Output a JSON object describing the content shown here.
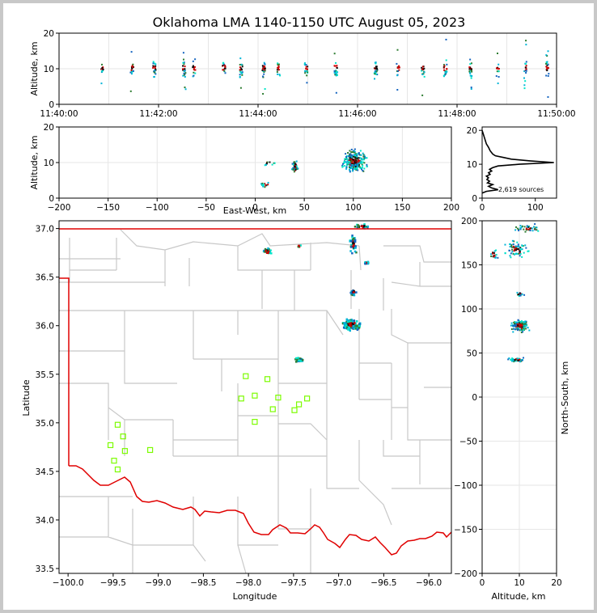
{
  "title": "Oklahoma LMA 1140-1150 UTC August 05, 2023",
  "colors": {
    "background": "#ffffff",
    "border": "#c8c8c8",
    "state_line": "#e00000",
    "county_line": "#c8c8c8",
    "station": "#7cfc00"
  },
  "colormap": [
    "#1565c0",
    "#00b4d8",
    "#00e5c8",
    "#2e7d32",
    "#cc0000",
    "#111111"
  ],
  "chart_data": [
    {
      "panel": "time-height",
      "type": "scatter",
      "xlabel": "",
      "ylabel": "Altitude, km",
      "xlim": [
        "11:40:00",
        "11:50:00"
      ],
      "ylim": [
        0,
        20
      ],
      "x_ticks": [
        "11:40:00",
        "11:42:00",
        "11:44:00",
        "11:46:00",
        "11:48:00",
        "11:50:00"
      ],
      "y_ticks": [
        "0",
        "10",
        "20"
      ],
      "grid": true,
      "flash_times_min": [
        0.85,
        1.45,
        1.9,
        2.5,
        2.7,
        3.3,
        3.65,
        4.1,
        4.4,
        4.95,
        5.55,
        6.35,
        6.8,
        7.3,
        7.75,
        8.25,
        8.8,
        9.35,
        9.8
      ]
    },
    {
      "panel": "east-west-height",
      "type": "scatter",
      "xlabel": "East-West, km",
      "ylabel": "Altitude, km",
      "xlim": [
        -200,
        200
      ],
      "ylim": [
        0,
        20
      ],
      "x_ticks": [
        "−200",
        "−150",
        "−100",
        "−50",
        "0",
        "50",
        "100",
        "150",
        "200"
      ],
      "y_ticks": [
        "0",
        "10",
        "20"
      ],
      "grid": true,
      "clusters": [
        {
          "x": 100,
          "y": 10.5,
          "dx": 16,
          "dy": 4,
          "n": 260
        },
        {
          "x": 40,
          "y": 9,
          "dx": 4,
          "dy": 2.5,
          "n": 45
        },
        {
          "x": 10,
          "y": 4,
          "dx": 6,
          "dy": 1,
          "n": 14
        },
        {
          "x": 12,
          "y": 10,
          "dx": 10,
          "dy": 1,
          "n": 10
        }
      ]
    },
    {
      "panel": "altitude-histogram",
      "type": "line",
      "xlabel": "",
      "ylabel": "",
      "xlim": [
        0,
        140
      ],
      "ylim": [
        0,
        21
      ],
      "x_ticks": [
        "0",
        "100"
      ],
      "y_ticks": [
        "0",
        "10",
        "20"
      ],
      "annotation": "2,619 sources",
      "profile": [
        [
          0,
          1.5
        ],
        [
          8,
          2
        ],
        [
          30,
          2.5
        ],
        [
          18,
          3
        ],
        [
          12,
          3.5
        ],
        [
          20,
          4
        ],
        [
          10,
          4.5
        ],
        [
          14,
          5
        ],
        [
          9,
          5.5
        ],
        [
          12,
          6
        ],
        [
          8,
          6.5
        ],
        [
          15,
          7
        ],
        [
          12,
          7.5
        ],
        [
          18,
          8
        ],
        [
          14,
          8.5
        ],
        [
          20,
          9
        ],
        [
          30,
          9.5
        ],
        [
          70,
          10
        ],
        [
          135,
          10.5
        ],
        [
          90,
          11
        ],
        [
          55,
          11.5
        ],
        [
          40,
          12
        ],
        [
          25,
          12.5
        ],
        [
          20,
          13
        ],
        [
          15,
          14
        ],
        [
          12,
          15
        ],
        [
          8,
          16
        ],
        [
          6,
          17
        ],
        [
          4,
          18
        ],
        [
          2,
          19
        ],
        [
          0,
          20
        ]
      ]
    },
    {
      "panel": "plan-view",
      "type": "map",
      "xlabel": "Longitude",
      "ylabel": "Latitude",
      "xlim": [
        -100.1,
        -95.75
      ],
      "ylim": [
        33.45,
        37.08
      ],
      "x_ticks": [
        "−100.0",
        "−99.5",
        "−99.0",
        "−98.5",
        "−98.0",
        "−97.5",
        "−97.0",
        "−96.5",
        "−96.0"
      ],
      "y_ticks": [
        "33.5",
        "34.0",
        "34.5",
        "35.0",
        "35.5",
        "36.0",
        "36.5",
        "37.0"
      ],
      "stations": [
        [
          -98.03,
          35.48
        ],
        [
          -97.79,
          35.45
        ],
        [
          -98.08,
          35.25
        ],
        [
          -97.93,
          35.28
        ],
        [
          -97.67,
          35.26
        ],
        [
          -97.35,
          35.25
        ],
        [
          -97.44,
          35.19
        ],
        [
          -97.73,
          35.14
        ],
        [
          -97.49,
          35.13
        ],
        [
          -97.93,
          35.01
        ],
        [
          -99.45,
          34.98
        ],
        [
          -99.39,
          34.86
        ],
        [
          -99.53,
          34.77
        ],
        [
          -99.37,
          34.71
        ],
        [
          -99.09,
          34.72
        ],
        [
          -99.49,
          34.61
        ],
        [
          -99.45,
          34.52
        ]
      ],
      "clusters": [
        {
          "x": -96.87,
          "y": 36.02,
          "dx": 0.12,
          "dy": 0.07,
          "n": 230
        },
        {
          "x": -96.85,
          "y": 36.35,
          "dx": 0.04,
          "dy": 0.05,
          "n": 25
        },
        {
          "x": -97.45,
          "y": 35.66,
          "dx": 0.05,
          "dy": 0.03,
          "n": 40
        },
        {
          "x": -97.8,
          "y": 36.77,
          "dx": 0.08,
          "dy": 0.05,
          "n": 25
        },
        {
          "x": -96.85,
          "y": 36.85,
          "dx": 0.05,
          "dy": 0.12,
          "n": 45
        },
        {
          "x": -96.75,
          "y": 37.03,
          "dx": 0.12,
          "dy": 0.03,
          "n": 20
        },
        {
          "x": -96.7,
          "y": 36.65,
          "dx": 0.04,
          "dy": 0.03,
          "n": 12
        },
        {
          "x": -97.45,
          "y": 36.83,
          "dx": 0.03,
          "dy": 0.02,
          "n": 5
        }
      ]
    },
    {
      "panel": "north-south-height",
      "type": "scatter",
      "xlabel": "Altitude, km",
      "ylabel": "North-South, km",
      "xlim": [
        0,
        20
      ],
      "ylim": [
        -200,
        200
      ],
      "x_ticks": [
        "0",
        "10",
        "20"
      ],
      "y_ticks": [
        "−200",
        "−150",
        "−100",
        "−50",
        "0",
        "50",
        "100",
        "150",
        "200"
      ],
      "grid": true,
      "clusters": [
        {
          "x": 10,
          "y": 82,
          "dx": 3,
          "dy": 9,
          "n": 170
        },
        {
          "x": 9,
          "y": 43,
          "dx": 3,
          "dy": 3,
          "n": 60
        },
        {
          "x": 10,
          "y": 118,
          "dx": 2,
          "dy": 3,
          "n": 14
        },
        {
          "x": 9,
          "y": 168,
          "dx": 4,
          "dy": 12,
          "n": 70
        },
        {
          "x": 12,
          "y": 192,
          "dx": 5,
          "dy": 6,
          "n": 40
        },
        {
          "x": 3,
          "y": 162,
          "dx": 1.5,
          "dy": 10,
          "n": 18
        }
      ]
    }
  ]
}
